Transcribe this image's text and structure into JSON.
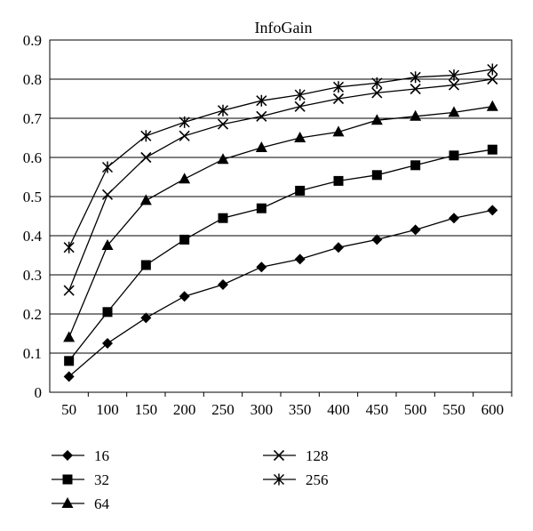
{
  "chart_data": {
    "type": "line",
    "title": "InfoGain",
    "xlabel": "",
    "ylabel": "",
    "x": [
      50,
      100,
      150,
      200,
      250,
      300,
      350,
      400,
      450,
      500,
      550,
      600
    ],
    "x_tick_labels": [
      "50",
      "100",
      "150",
      "200",
      "250",
      "300",
      "350",
      "400",
      "450",
      "500",
      "550",
      "600"
    ],
    "ylim": [
      0,
      0.9
    ],
    "y_ticks": [
      0,
      0.1,
      0.2,
      0.3,
      0.4,
      0.5,
      0.6,
      0.7,
      0.8,
      0.9
    ],
    "y_tick_labels": [
      "0",
      "0.1",
      "0.2",
      "0.3",
      "0.4",
      "0.5",
      "0.6",
      "0.7",
      "0.8",
      "0.9"
    ],
    "grid": "horizontal",
    "legend_position": "bottom",
    "series": [
      {
        "name": "16",
        "marker": "diamond",
        "values": [
          0.04,
          0.125,
          0.19,
          0.245,
          0.275,
          0.32,
          0.34,
          0.37,
          0.39,
          0.415,
          0.445,
          0.465
        ]
      },
      {
        "name": "32",
        "marker": "square",
        "values": [
          0.08,
          0.205,
          0.325,
          0.39,
          0.445,
          0.47,
          0.515,
          0.54,
          0.555,
          0.58,
          0.605,
          0.62
        ]
      },
      {
        "name": "64",
        "marker": "triangle",
        "values": [
          0.14,
          0.375,
          0.49,
          0.545,
          0.595,
          0.625,
          0.65,
          0.665,
          0.695,
          0.705,
          0.715,
          0.73
        ]
      },
      {
        "name": "128",
        "marker": "x",
        "values": [
          0.26,
          0.505,
          0.6,
          0.655,
          0.685,
          0.705,
          0.73,
          0.75,
          0.765,
          0.775,
          0.785,
          0.8
        ]
      },
      {
        "name": "256",
        "marker": "asterisk",
        "values": [
          0.37,
          0.575,
          0.655,
          0.69,
          0.72,
          0.745,
          0.76,
          0.78,
          0.79,
          0.805,
          0.81,
          0.825
        ]
      }
    ]
  }
}
